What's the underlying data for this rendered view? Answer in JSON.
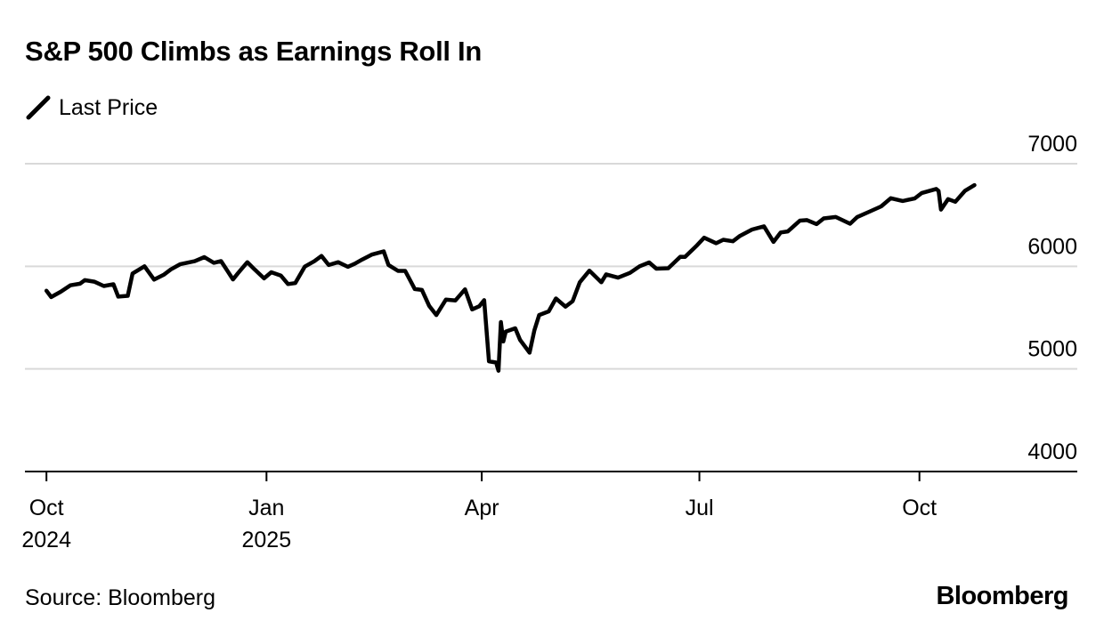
{
  "title": "S&P 500 Climbs as Earnings Roll In",
  "legend": {
    "label": "Last Price",
    "icon": "line-swatch-icon",
    "color": "#000000"
  },
  "source": "Source: Bloomberg",
  "brand": "Bloomberg",
  "chart_data": {
    "type": "line",
    "title": "S&P 500 Climbs as Earnings Roll In",
    "xlabel": "",
    "ylabel": "",
    "ylim": [
      4000,
      7000
    ],
    "yticks": [
      {
        "value": 7000,
        "label": "7000"
      },
      {
        "value": 6000,
        "label": "6000"
      },
      {
        "value": 5000,
        "label": "5000"
      },
      {
        "value": 4000,
        "label": "4000"
      }
    ],
    "xlim": [
      "2024-09-22",
      "2025-12-06"
    ],
    "xticks": [
      {
        "date": "2024-10-01",
        "label": [
          "Oct",
          "2024"
        ]
      },
      {
        "date": "2025-01-01",
        "label": [
          "Jan",
          "2025"
        ]
      },
      {
        "date": "2025-04-01",
        "label": [
          "Apr"
        ]
      },
      {
        "date": "2025-07-01",
        "label": [
          "Jul"
        ]
      },
      {
        "date": "2025-10-01",
        "label": [
          "Oct"
        ]
      }
    ],
    "grid": true,
    "legend_position": "top-left",
    "series": [
      {
        "name": "Last Price",
        "color": "#000000",
        "x": [
          "2024-10-01",
          "2024-10-03",
          "2024-10-07",
          "2024-10-11",
          "2024-10-15",
          "2024-10-17",
          "2024-10-21",
          "2024-10-25",
          "2024-10-29",
          "2024-10-31",
          "2024-11-04",
          "2024-11-06",
          "2024-11-11",
          "2024-11-15",
          "2024-11-19",
          "2024-11-22",
          "2024-11-26",
          "2024-12-02",
          "2024-12-06",
          "2024-12-10",
          "2024-12-13",
          "2024-12-18",
          "2024-12-20",
          "2024-12-24",
          "2024-12-27",
          "2024-12-31",
          "2025-01-03",
          "2025-01-07",
          "2025-01-10",
          "2025-01-13",
          "2025-01-17",
          "2025-01-21",
          "2025-01-24",
          "2025-01-27",
          "2025-01-31",
          "2025-02-04",
          "2025-02-07",
          "2025-02-10",
          "2025-02-14",
          "2025-02-19",
          "2025-02-21",
          "2025-02-25",
          "2025-02-28",
          "2025-03-04",
          "2025-03-07",
          "2025-03-10",
          "2025-03-13",
          "2025-03-17",
          "2025-03-21",
          "2025-03-25",
          "2025-03-28",
          "2025-03-31",
          "2025-04-02",
          "2025-04-04",
          "2025-04-07",
          "2025-04-08",
          "2025-04-09",
          "2025-04-10",
          "2025-04-11",
          "2025-04-15",
          "2025-04-17",
          "2025-04-21",
          "2025-04-23",
          "2025-04-25",
          "2025-04-29",
          "2025-05-02",
          "2025-05-06",
          "2025-05-09",
          "2025-05-12",
          "2025-05-16",
          "2025-05-21",
          "2025-05-23",
          "2025-05-28",
          "2025-06-02",
          "2025-06-06",
          "2025-06-10",
          "2025-06-13",
          "2025-06-18",
          "2025-06-23",
          "2025-06-25",
          "2025-06-30",
          "2025-07-03",
          "2025-07-08",
          "2025-07-11",
          "2025-07-15",
          "2025-07-18",
          "2025-07-23",
          "2025-07-28",
          "2025-08-01",
          "2025-08-04",
          "2025-08-07",
          "2025-08-12",
          "2025-08-15",
          "2025-08-19",
          "2025-08-22",
          "2025-08-27",
          "2025-09-02",
          "2025-09-05",
          "2025-09-10",
          "2025-09-15",
          "2025-09-19",
          "2025-09-24",
          "2025-09-29",
          "2025-10-02",
          "2025-10-08",
          "2025-10-09",
          "2025-10-10",
          "2025-10-13",
          "2025-10-16",
          "2025-10-20",
          "2025-10-24"
        ],
        "values": [
          5762,
          5700,
          5752,
          5815,
          5830,
          5865,
          5850,
          5808,
          5825,
          5705,
          5712,
          5930,
          6000,
          5870,
          5917,
          5970,
          6021,
          6050,
          6090,
          6034,
          6051,
          5872,
          5931,
          6040,
          5970,
          5882,
          5942,
          5910,
          5827,
          5836,
          5997,
          6050,
          6101,
          6012,
          6040,
          5995,
          6026,
          6066,
          6114,
          6145,
          6013,
          5955,
          5955,
          5778,
          5770,
          5615,
          5525,
          5675,
          5667,
          5776,
          5580,
          5611,
          5670,
          5074,
          5062,
          4982,
          5457,
          5268,
          5363,
          5396,
          5283,
          5158,
          5376,
          5525,
          5561,
          5686,
          5607,
          5660,
          5844,
          5958,
          5844,
          5921,
          5889,
          5936,
          6000,
          6038,
          5977,
          5981,
          6093,
          6092,
          6205,
          6279,
          6225,
          6259,
          6244,
          6297,
          6358,
          6390,
          6238,
          6330,
          6340,
          6445,
          6450,
          6411,
          6467,
          6481,
          6415,
          6481,
          6532,
          6584,
          6664,
          6637,
          6661,
          6715,
          6754,
          6735,
          6553,
          6655,
          6629,
          6735,
          6791
        ]
      }
    ]
  }
}
